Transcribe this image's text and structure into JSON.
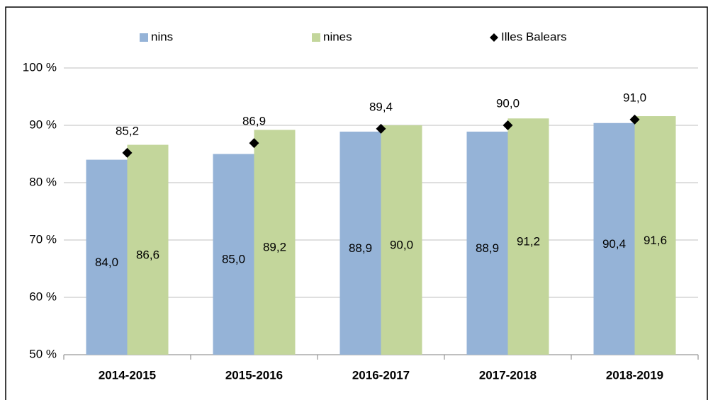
{
  "chart_data": {
    "type": "bar",
    "categories": [
      "2014-2015",
      "2015-2016",
      "2016-2017",
      "2017-2018",
      "2018-2019"
    ],
    "series": [
      {
        "name": "nins",
        "color": "#95b3d7",
        "values": [
          84.0,
          85.0,
          88.9,
          88.9,
          90.4
        ],
        "value_labels": [
          "84,0",
          "85,0",
          "88,9",
          "88,9",
          "90,4"
        ]
      },
      {
        "name": "nines",
        "color": "#c3d69b",
        "values": [
          86.6,
          89.2,
          90.0,
          91.2,
          91.6
        ],
        "value_labels": [
          "86,6",
          "89,2",
          "90,0",
          "91,2",
          "91,6"
        ]
      },
      {
        "name": "Illes Balears",
        "type": "marker",
        "color": "#000000",
        "values": [
          85.2,
          86.9,
          89.4,
          90.0,
          91.0
        ],
        "value_labels": [
          "85,2",
          "86,9",
          "89,4",
          "90,0",
          "91,0"
        ]
      }
    ],
    "ylim": [
      50,
      100
    ],
    "yticks": [
      {
        "value": 50,
        "label": "50 %"
      },
      {
        "value": 60,
        "label": "60 %"
      },
      {
        "value": 70,
        "label": "70 %"
      },
      {
        "value": 80,
        "label": "80 %"
      },
      {
        "value": 90,
        "label": "90 %"
      },
      {
        "value": 100,
        "label": "100 %"
      }
    ],
    "grid": true,
    "legend": "top"
  }
}
